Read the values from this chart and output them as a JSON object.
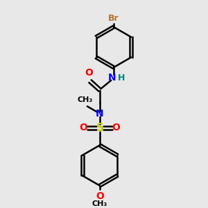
{
  "bg_color": "#e8e8e8",
  "bond_color": "#000000",
  "atom_colors": {
    "Br": "#b87333",
    "O": "#ff0000",
    "N": "#0000ff",
    "S": "#cccc00",
    "H": "#008080",
    "C": "#000000"
  },
  "bond_width": 1.8,
  "fig_size": [
    3.0,
    3.0
  ],
  "dpi": 100,
  "xlim": [
    0,
    10
  ],
  "ylim": [
    0,
    10
  ]
}
